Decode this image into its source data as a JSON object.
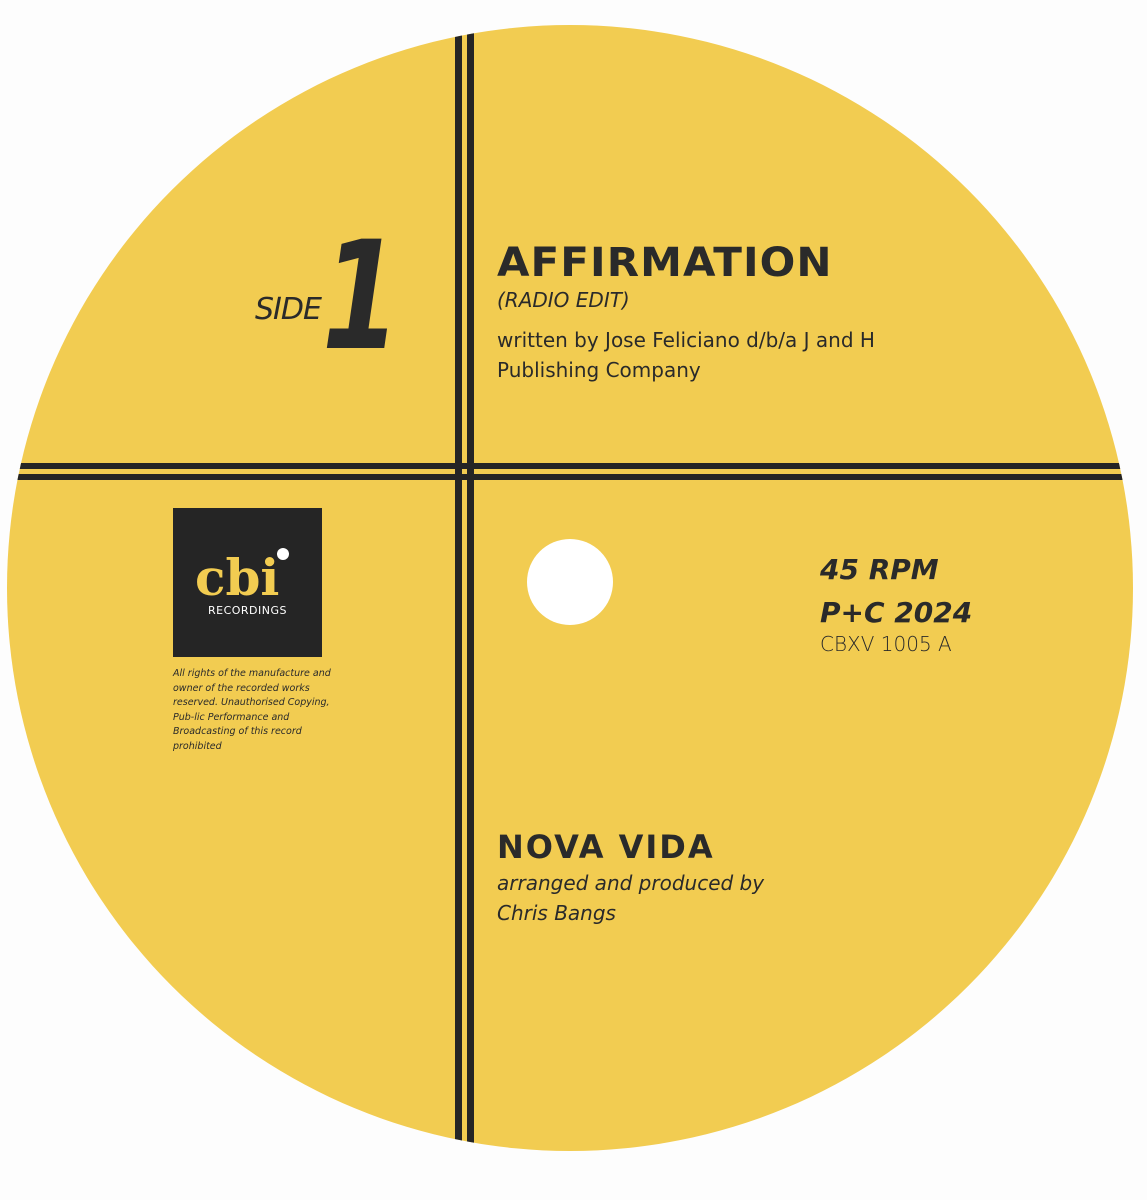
{
  "label": {
    "background_color": "#f2cc51",
    "ink_color": "#2a2a2a",
    "side_label": "SIDE",
    "side_number": "1",
    "track_title": "AFFIRMATION",
    "track_version": "(RADIO EDIT)",
    "writer_credit": "written by Jose Feliciano d/b/a J and H Publishing Company",
    "speed": "45 RPM",
    "copyright": "P+C 2024",
    "catalog_number": "CBXV 1005 A",
    "artist": "NOVA VIDA",
    "production_credit": "arranged and produced by Chris Bangs",
    "logo": {
      "wordmark": "cbi",
      "subtitle": "RECORDINGS"
    },
    "legal_notice": "All rights of the manufacture and owner of the recorded works reserved. Unauthorised Copying, Pub-lic Performance and Broadcasting of this record prohibited"
  }
}
